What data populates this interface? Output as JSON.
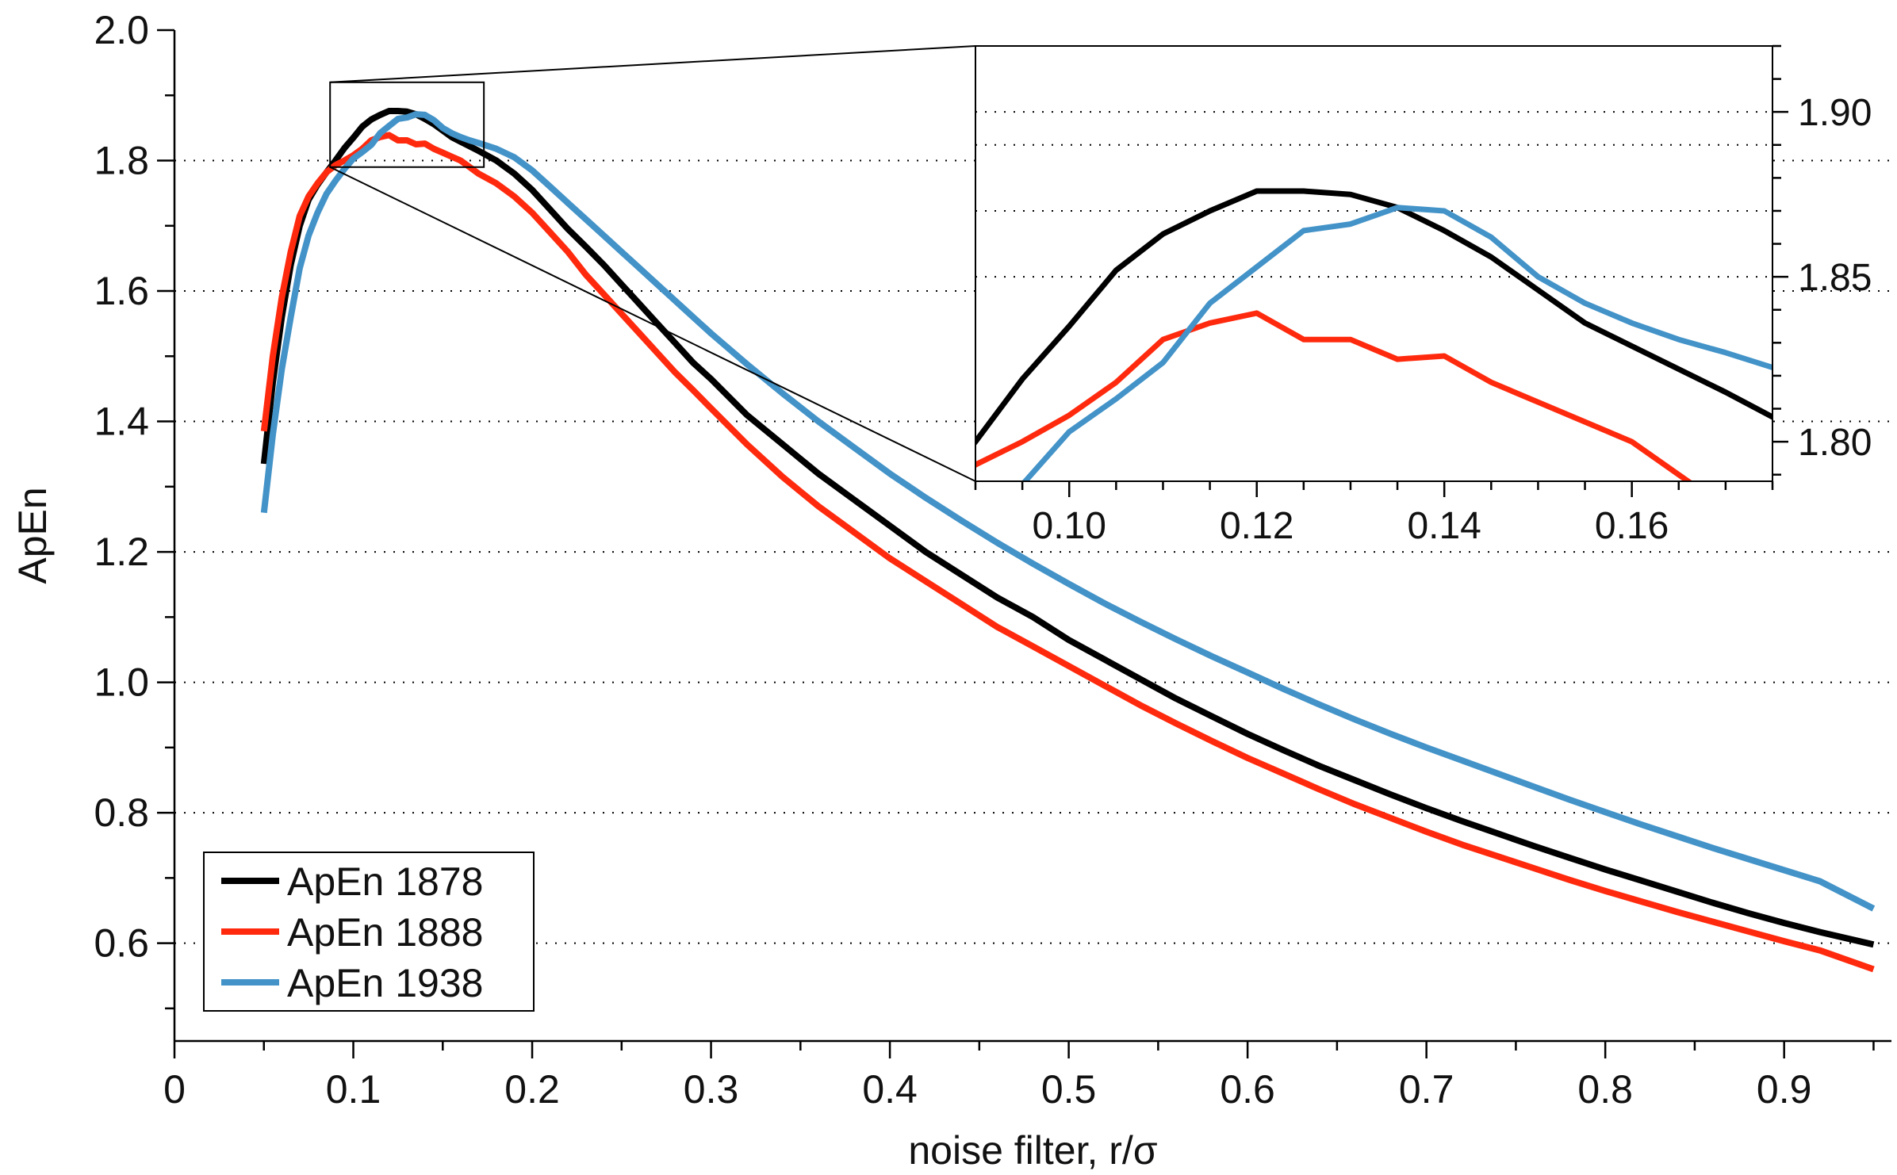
{
  "chart_data": {
    "type": "line",
    "title": "",
    "xlabel": "noise filter, r/σ",
    "ylabel": "ApEn",
    "xlim": [
      0,
      0.96
    ],
    "ylim": [
      0.45,
      2.0
    ],
    "grid": "dotted horizontal",
    "legend_position": "bottom-left",
    "xticks": [
      0,
      0.1,
      0.2,
      0.3,
      0.4,
      0.5,
      0.6,
      0.7,
      0.8,
      0.9
    ],
    "xtick_labels": [
      "0",
      "0.1",
      "0.2",
      "0.3",
      "0.4",
      "0.5",
      "0.6",
      "0.7",
      "0.8",
      "0.9"
    ],
    "yticks": [
      0.6,
      0.8,
      1.0,
      1.2,
      1.4,
      1.6,
      1.8,
      2.0
    ],
    "ytick_labels": [
      "0.6",
      "0.8",
      "1.0",
      "1.2",
      "1.4",
      "1.6",
      "1.8",
      "2.0"
    ],
    "series": [
      {
        "name": "ApEn 1878",
        "color": "#000000",
        "x": [
          0.05,
          0.055,
          0.06,
          0.065,
          0.07,
          0.075,
          0.08,
          0.085,
          0.09,
          0.095,
          0.1,
          0.105,
          0.11,
          0.115,
          0.12,
          0.125,
          0.13,
          0.135,
          0.14,
          0.145,
          0.15,
          0.155,
          0.16,
          0.165,
          0.17,
          0.18,
          0.19,
          0.2,
          0.21,
          0.22,
          0.23,
          0.24,
          0.25,
          0.26,
          0.27,
          0.28,
          0.29,
          0.3,
          0.32,
          0.34,
          0.36,
          0.38,
          0.4,
          0.42,
          0.44,
          0.46,
          0.48,
          0.5,
          0.52,
          0.54,
          0.56,
          0.58,
          0.6,
          0.62,
          0.64,
          0.66,
          0.68,
          0.7,
          0.72,
          0.74,
          0.76,
          0.78,
          0.8,
          0.82,
          0.84,
          0.86,
          0.88,
          0.9,
          0.92,
          0.95
        ],
        "y": [
          1.335,
          1.46,
          1.56,
          1.64,
          1.7,
          1.74,
          1.763,
          1.782,
          1.8,
          1.819,
          1.835,
          1.852,
          1.863,
          1.87,
          1.876,
          1.876,
          1.875,
          1.871,
          1.864,
          1.856,
          1.846,
          1.836,
          1.829,
          1.822,
          1.815,
          1.8,
          1.78,
          1.755,
          1.725,
          1.695,
          1.668,
          1.64,
          1.61,
          1.58,
          1.55,
          1.52,
          1.49,
          1.465,
          1.41,
          1.365,
          1.32,
          1.28,
          1.24,
          1.2,
          1.165,
          1.13,
          1.1,
          1.065,
          1.035,
          1.005,
          0.975,
          0.948,
          0.921,
          0.896,
          0.872,
          0.85,
          0.828,
          0.807,
          0.787,
          0.768,
          0.749,
          0.731,
          0.713,
          0.696,
          0.679,
          0.662,
          0.646,
          0.631,
          0.617,
          0.598
        ]
      },
      {
        "name": "ApEn 1888",
        "color": "#ff2a0e",
        "x": [
          0.05,
          0.055,
          0.06,
          0.065,
          0.07,
          0.075,
          0.08,
          0.085,
          0.09,
          0.095,
          0.1,
          0.105,
          0.11,
          0.115,
          0.12,
          0.125,
          0.13,
          0.135,
          0.14,
          0.145,
          0.15,
          0.155,
          0.16,
          0.165,
          0.17,
          0.18,
          0.19,
          0.2,
          0.21,
          0.22,
          0.23,
          0.24,
          0.25,
          0.26,
          0.27,
          0.28,
          0.29,
          0.3,
          0.32,
          0.34,
          0.36,
          0.38,
          0.4,
          0.42,
          0.44,
          0.46,
          0.48,
          0.5,
          0.52,
          0.54,
          0.56,
          0.58,
          0.6,
          0.62,
          0.64,
          0.66,
          0.68,
          0.7,
          0.72,
          0.74,
          0.76,
          0.78,
          0.8,
          0.82,
          0.84,
          0.86,
          0.88,
          0.9,
          0.92,
          0.95
        ],
        "y": [
          1.385,
          1.5,
          1.59,
          1.66,
          1.715,
          1.745,
          1.765,
          1.782,
          1.793,
          1.8,
          1.808,
          1.818,
          1.831,
          1.836,
          1.839,
          1.831,
          1.831,
          1.825,
          1.826,
          1.818,
          1.812,
          1.806,
          1.8,
          1.79,
          1.78,
          1.765,
          1.745,
          1.72,
          1.69,
          1.66,
          1.625,
          1.595,
          1.565,
          1.535,
          1.505,
          1.475,
          1.448,
          1.42,
          1.365,
          1.315,
          1.27,
          1.23,
          1.19,
          1.155,
          1.12,
          1.085,
          1.055,
          1.025,
          0.995,
          0.965,
          0.937,
          0.91,
          0.884,
          0.86,
          0.836,
          0.813,
          0.792,
          0.771,
          0.751,
          0.733,
          0.715,
          0.697,
          0.68,
          0.664,
          0.648,
          0.633,
          0.618,
          0.603,
          0.589,
          0.56
        ]
      },
      {
        "name": "ApEn 1938",
        "color": "#4393c8",
        "x": [
          0.05,
          0.055,
          0.06,
          0.065,
          0.07,
          0.075,
          0.08,
          0.085,
          0.09,
          0.095,
          0.1,
          0.105,
          0.11,
          0.115,
          0.12,
          0.125,
          0.13,
          0.135,
          0.14,
          0.145,
          0.15,
          0.155,
          0.16,
          0.165,
          0.17,
          0.18,
          0.19,
          0.2,
          0.21,
          0.22,
          0.23,
          0.24,
          0.25,
          0.26,
          0.27,
          0.28,
          0.29,
          0.3,
          0.32,
          0.34,
          0.36,
          0.38,
          0.4,
          0.42,
          0.44,
          0.46,
          0.48,
          0.5,
          0.52,
          0.54,
          0.56,
          0.58,
          0.6,
          0.62,
          0.64,
          0.66,
          0.68,
          0.7,
          0.72,
          0.74,
          0.76,
          0.78,
          0.8,
          0.82,
          0.84,
          0.86,
          0.88,
          0.9,
          0.92,
          0.95
        ],
        "y": [
          1.26,
          1.38,
          1.48,
          1.56,
          1.635,
          1.685,
          1.72,
          1.749,
          1.769,
          1.787,
          1.803,
          1.813,
          1.824,
          1.842,
          1.853,
          1.864,
          1.866,
          1.871,
          1.87,
          1.862,
          1.85,
          1.842,
          1.836,
          1.831,
          1.827,
          1.818,
          1.805,
          1.785,
          1.76,
          1.735,
          1.71,
          1.685,
          1.66,
          1.635,
          1.61,
          1.585,
          1.56,
          1.535,
          1.488,
          1.443,
          1.4,
          1.36,
          1.32,
          1.283,
          1.248,
          1.214,
          1.182,
          1.151,
          1.121,
          1.093,
          1.066,
          1.04,
          1.015,
          0.99,
          0.966,
          0.943,
          0.921,
          0.9,
          0.88,
          0.86,
          0.84,
          0.82,
          0.801,
          0.782,
          0.764,
          0.746,
          0.729,
          0.712,
          0.695,
          0.653
        ]
      }
    ],
    "inset": {
      "xlim": [
        0.09,
        0.175
      ],
      "ylim": [
        1.788,
        1.92
      ],
      "xticks": [
        0.1,
        0.12,
        0.14,
        0.16
      ],
      "xtick_labels": [
        "0.10",
        "0.12",
        "0.14",
        "0.16"
      ],
      "yticks": [
        1.8,
        1.85,
        1.9
      ],
      "ytick_labels": [
        "1.80",
        "1.85",
        "1.90"
      ],
      "source_region": {
        "x": [
          0.087,
          0.173
        ],
        "y": [
          1.79,
          1.92
        ]
      }
    }
  }
}
